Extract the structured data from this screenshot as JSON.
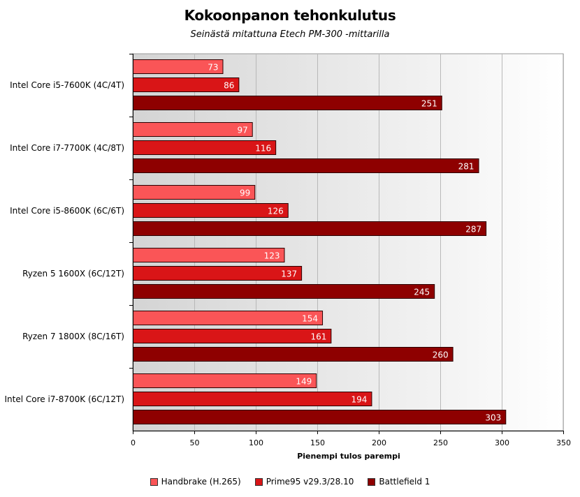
{
  "chart_data": {
    "type": "bar",
    "orientation": "horizontal",
    "title": "Kokoonpanon tehonkulutus",
    "subtitle": "Seinästä mitattuna Etech PM-300 -mittarilla",
    "xlabel": "Pienempi tulos parempi",
    "ylabel": "",
    "xlim": [
      0,
      350
    ],
    "xticks": [
      0,
      50,
      100,
      150,
      200,
      250,
      300,
      350
    ],
    "grid": true,
    "legend_position": "bottom",
    "categories": [
      "Intel Core i5-7600K (4C/4T)",
      "Intel Core i7-7700K (4C/8T)",
      "Intel Core i5-8600K (6C/6T)",
      "Ryzen 5 1600X (6C/12T)",
      "Ryzen 7 1800X (8C/16T)",
      "Intel Core i7-8700K (6C/12T)"
    ],
    "series": [
      {
        "name": "Handbrake (H.265)",
        "color": "#fa5557",
        "values": [
          73,
          97,
          99,
          123,
          154,
          149
        ]
      },
      {
        "name": "Prime95 v29.3/28.10",
        "color": "#d91517",
        "values": [
          86,
          116,
          126,
          137,
          161,
          194
        ]
      },
      {
        "name": "Battlefield 1",
        "color": "#8e0000",
        "values": [
          251,
          281,
          287,
          245,
          260,
          303
        ]
      }
    ]
  }
}
